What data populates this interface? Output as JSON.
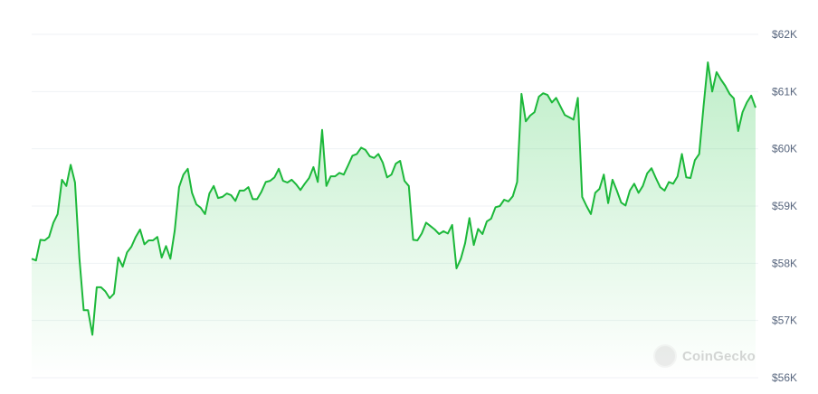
{
  "chart_data": {
    "type": "area",
    "title": "",
    "xlabel": "",
    "ylabel": "",
    "ylim": [
      56,
      62
    ],
    "y_unit": "thousand USD",
    "y_ticks": [
      {
        "value": 62,
        "label": "$62K"
      },
      {
        "value": 61,
        "label": "$61K"
      },
      {
        "value": 60,
        "label": "$60K"
      },
      {
        "value": 59,
        "label": "$59K"
      },
      {
        "value": 58,
        "label": "$58K"
      },
      {
        "value": 57,
        "label": "$57K"
      },
      {
        "value": 56,
        "label": "$56K"
      }
    ],
    "y_axis_position": "right",
    "grid": true,
    "line_color": "#1cb83a",
    "fill_color": "#1cc43f",
    "values": [
      58.08,
      58.05,
      58.41,
      58.4,
      58.46,
      58.71,
      58.86,
      59.46,
      59.35,
      59.72,
      59.41,
      58.1,
      57.18,
      57.18,
      56.75,
      57.58,
      57.58,
      57.51,
      57.39,
      57.47,
      58.1,
      57.94,
      58.19,
      58.29,
      58.46,
      58.59,
      58.33,
      58.4,
      58.4,
      58.46,
      58.1,
      58.3,
      58.08,
      58.57,
      59.33,
      59.55,
      59.65,
      59.23,
      59.03,
      58.97,
      58.86,
      59.22,
      59.35,
      59.14,
      59.16,
      59.22,
      59.19,
      59.09,
      59.27,
      59.27,
      59.33,
      59.12,
      59.12,
      59.25,
      59.42,
      59.44,
      59.5,
      59.65,
      59.44,
      59.41,
      59.46,
      59.38,
      59.28,
      59.39,
      59.49,
      59.68,
      59.42,
      60.33,
      59.35,
      59.52,
      59.52,
      59.58,
      59.55,
      59.71,
      59.88,
      59.91,
      60.02,
      59.98,
      59.87,
      59.84,
      59.91,
      59.76,
      59.5,
      59.55,
      59.74,
      59.79,
      59.44,
      59.35,
      58.41,
      58.4,
      58.52,
      58.71,
      58.65,
      58.59,
      58.51,
      58.56,
      58.52,
      58.67,
      57.91,
      58.08,
      58.35,
      58.79,
      58.32,
      58.6,
      58.51,
      58.73,
      58.78,
      58.98,
      59.0,
      59.11,
      59.08,
      59.17,
      59.42,
      60.96,
      60.48,
      60.58,
      60.64,
      60.91,
      60.97,
      60.94,
      60.81,
      60.89,
      60.74,
      60.59,
      60.55,
      60.51,
      60.89,
      59.16,
      59.0,
      58.86,
      59.23,
      59.3,
      59.55,
      59.05,
      59.46,
      59.27,
      59.06,
      59.01,
      59.27,
      59.39,
      59.23,
      59.35,
      59.57,
      59.66,
      59.49,
      59.33,
      59.27,
      59.42,
      59.39,
      59.52,
      59.91,
      59.5,
      59.49,
      59.8,
      59.91,
      60.74,
      61.51,
      61.0,
      61.34,
      61.21,
      61.1,
      60.96,
      60.88,
      60.31,
      60.64,
      60.81,
      60.93,
      60.72
    ]
  },
  "watermark": "CoinGecko"
}
